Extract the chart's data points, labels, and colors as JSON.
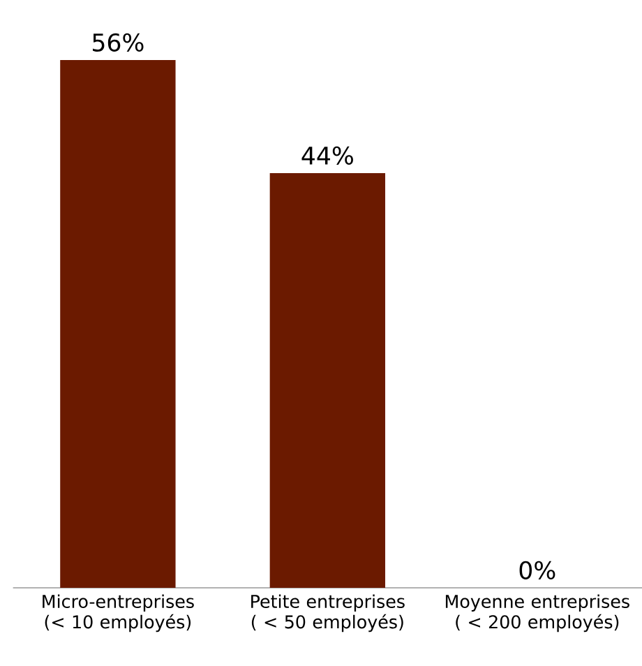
{
  "chart_data": {
    "type": "bar",
    "categories": [
      "Micro-entreprises (< 10 employés)",
      "Petite entreprises ( < 50 employés)",
      "Moyenne entreprises ( < 200 employés)"
    ],
    "values": [
      56,
      44,
      0
    ],
    "value_labels": [
      "56%",
      "44%",
      "0%"
    ],
    "color": "#6b1a00"
  }
}
